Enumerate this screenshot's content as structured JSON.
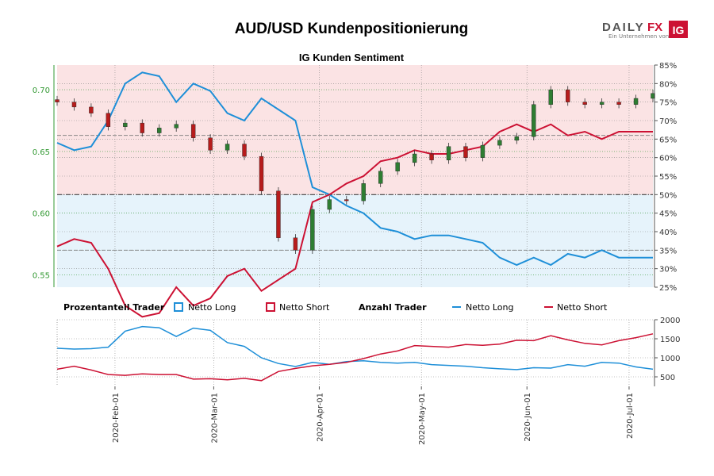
{
  "title": "AUD/USD Kundenpositionierung",
  "brand": {
    "name_a": "DAILY",
    "name_b": "FX",
    "tagline": "Ein Unternehmen von",
    "badge": "IG"
  },
  "colors": {
    "long": "#1e8fd8",
    "short": "#cc1133",
    "price_axis": "#339933",
    "bull_candle": "#2e7d32",
    "bear_candle": "#b71c1c",
    "long_zone": "#e6f3fb",
    "short_zone": "#fbe3e4",
    "grid": "#888888"
  },
  "chart_data": [
    {
      "type": "line",
      "title": "IG Kunden Sentiment",
      "x_dates": [
        "2020-01-15",
        "2020-01-20",
        "2020-01-25",
        "2020-01-30",
        "2020-02-04",
        "2020-02-09",
        "2020-02-14",
        "2020-02-19",
        "2020-02-24",
        "2020-02-29",
        "2020-03-05",
        "2020-03-10",
        "2020-03-15",
        "2020-03-20",
        "2020-03-25",
        "2020-03-30",
        "2020-04-04",
        "2020-04-09",
        "2020-04-14",
        "2020-04-19",
        "2020-04-24",
        "2020-04-29",
        "2020-05-04",
        "2020-05-09",
        "2020-05-14",
        "2020-05-19",
        "2020-05-24",
        "2020-05-29",
        "2020-06-03",
        "2020-06-08",
        "2020-06-13",
        "2020-06-18",
        "2020-06-23",
        "2020-06-28",
        "2020-07-03",
        "2020-07-08"
      ],
      "price_axis": {
        "label_side": "left",
        "ylim": [
          0.54,
          0.72
        ],
        "ticks": [
          "0.55",
          "0.60",
          "0.65",
          "0.70"
        ]
      },
      "percent_axis": {
        "label_side": "right",
        "ylim": [
          25,
          85
        ],
        "ticks": [
          "25%",
          "30%",
          "35%",
          "40%",
          "45%",
          "50%",
          "55%",
          "60%",
          "65%",
          "70%",
          "75%",
          "80%",
          "85%"
        ]
      },
      "x_ticks": [
        "2020-Feb-01",
        "2020-Mar-01",
        "2020-Apr-01",
        "2020-May-01",
        "2020-Jun-01",
        "2020-Jul-01"
      ],
      "reference_lines_percent": [
        35,
        50,
        66
      ],
      "series": [
        {
          "name": "Netto Long",
          "unit": "%",
          "values": [
            64,
            62,
            63,
            70,
            80,
            83,
            82,
            75,
            80,
            78,
            72,
            70,
            76,
            73,
            70,
            52,
            50,
            47,
            45,
            41,
            40,
            38,
            39,
            39,
            38,
            37,
            33,
            31,
            33,
            31,
            34,
            33,
            35,
            33,
            33,
            33
          ]
        },
        {
          "name": "Netto Short",
          "unit": "%",
          "values": [
            36,
            38,
            37,
            30,
            20,
            17,
            18,
            25,
            20,
            22,
            28,
            30,
            24,
            27,
            30,
            48,
            50,
            53,
            55,
            59,
            60,
            62,
            61,
            61,
            62,
            63,
            67,
            69,
            67,
            69,
            66,
            67,
            65,
            67,
            67,
            67
          ]
        },
        {
          "name": "AUD/USD",
          "kind": "candlestick",
          "values": [
            0.69,
            0.686,
            0.681,
            0.67,
            0.673,
            0.665,
            0.669,
            0.672,
            0.661,
            0.651,
            0.656,
            0.646,
            0.618,
            0.58,
            0.57,
            0.603,
            0.611,
            0.61,
            0.624,
            0.634,
            0.641,
            0.648,
            0.643,
            0.654,
            0.645,
            0.655,
            0.659,
            0.662,
            0.688,
            0.7,
            0.69,
            0.688,
            0.69,
            0.688,
            0.693,
            0.697
          ]
        }
      ],
      "legend_title": "Prozentanteil Trader"
    },
    {
      "type": "line",
      "title": "Anzahl Trader",
      "ylim": [
        250,
        2000
      ],
      "y_ticks": [
        "500",
        "1000",
        "1500",
        "2000"
      ],
      "series": [
        {
          "name": "Netto Long",
          "values": [
            1250,
            1230,
            1240,
            1280,
            1700,
            1820,
            1790,
            1560,
            1780,
            1720,
            1400,
            1300,
            1000,
            850,
            770,
            880,
            830,
            900,
            920,
            880,
            860,
            880,
            820,
            800,
            780,
            740,
            710,
            690,
            740,
            730,
            820,
            780,
            880,
            860,
            760,
            700
          ]
        },
        {
          "name": "Netto Short",
          "values": [
            700,
            780,
            680,
            560,
            540,
            580,
            560,
            560,
            440,
            450,
            420,
            460,
            400,
            640,
            720,
            790,
            830,
            880,
            980,
            1100,
            1180,
            1320,
            1300,
            1280,
            1350,
            1330,
            1360,
            1460,
            1450,
            1580,
            1470,
            1380,
            1340,
            1450,
            1530,
            1630
          ]
        }
      ]
    }
  ]
}
